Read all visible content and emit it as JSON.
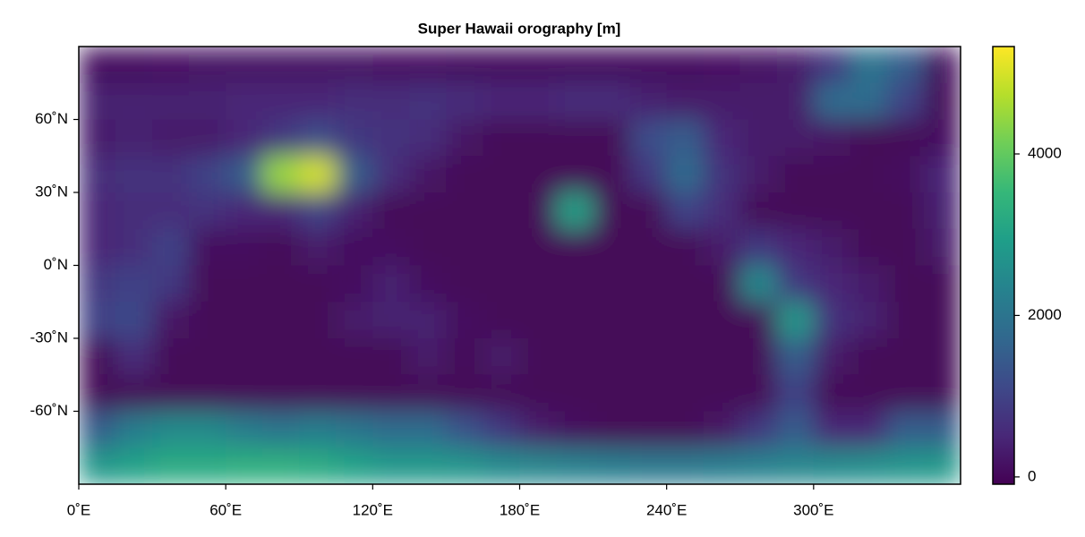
{
  "chart_data": {
    "type": "heatmap",
    "title": "Super Hawaii orography [m]",
    "xbins": [
      0,
      15,
      30,
      45,
      60,
      75,
      90,
      105,
      120,
      135,
      150,
      165,
      180,
      195,
      210,
      225,
      240,
      255,
      270,
      285,
      300,
      315,
      330,
      345,
      360
    ],
    "ybins": [
      90,
      75,
      60,
      45,
      30,
      15,
      0,
      -15,
      -30,
      -45,
      -60,
      -75,
      -90
    ],
    "z": [
      [
        100,
        100,
        150,
        200,
        200,
        200,
        200,
        200,
        150,
        150,
        100,
        100,
        100,
        100,
        100,
        100,
        100,
        150,
        200,
        300,
        800,
        2000,
        1500,
        100
      ],
      [
        400,
        400,
        400,
        400,
        500,
        500,
        500,
        600,
        600,
        700,
        600,
        500,
        500,
        600,
        600,
        400,
        300,
        300,
        300,
        300,
        1800,
        1800,
        1000,
        0
      ],
      [
        300,
        400,
        300,
        300,
        500,
        800,
        1200,
        800,
        700,
        600,
        200,
        0,
        0,
        0,
        0,
        1200,
        1500,
        500,
        300,
        300,
        200,
        0,
        0,
        100
      ],
      [
        600,
        700,
        700,
        1000,
        1500,
        4500,
        5000,
        1500,
        600,
        200,
        0,
        0,
        0,
        0,
        0,
        800,
        1800,
        700,
        300,
        0,
        0,
        0,
        100,
        500
      ],
      [
        500,
        600,
        600,
        700,
        500,
        500,
        1000,
        400,
        0,
        0,
        0,
        0,
        0,
        3000,
        0,
        0,
        1000,
        600,
        0,
        0,
        0,
        0,
        0,
        400
      ],
      [
        500,
        600,
        1000,
        100,
        100,
        0,
        300,
        100,
        100,
        0,
        0,
        0,
        0,
        0,
        0,
        0,
        0,
        300,
        800,
        500,
        300,
        0,
        0,
        300
      ],
      [
        800,
        1000,
        800,
        0,
        0,
        0,
        0,
        100,
        400,
        100,
        0,
        0,
        0,
        0,
        0,
        0,
        0,
        0,
        2500,
        800,
        500,
        300,
        0,
        0
      ],
      [
        1000,
        1100,
        200,
        0,
        0,
        0,
        0,
        300,
        400,
        400,
        100,
        0,
        0,
        0,
        0,
        0,
        0,
        0,
        0,
        2800,
        700,
        400,
        0,
        0
      ],
      [
        0,
        600,
        0,
        0,
        0,
        0,
        0,
        0,
        0,
        300,
        0,
        300,
        0,
        0,
        0,
        0,
        0,
        0,
        0,
        1500,
        300,
        0,
        0,
        0
      ],
      [
        0,
        0,
        0,
        0,
        0,
        0,
        0,
        0,
        0,
        0,
        0,
        0,
        0,
        0,
        0,
        0,
        0,
        0,
        0,
        1000,
        0,
        0,
        0,
        0
      ],
      [
        1500,
        2200,
        2500,
        2500,
        2200,
        2000,
        2200,
        2000,
        1800,
        1800,
        1300,
        800,
        300,
        100,
        0,
        0,
        0,
        200,
        800,
        1500,
        500,
        500,
        1500,
        1500
      ],
      [
        2800,
        3000,
        3200,
        3200,
        3300,
        3300,
        3200,
        3000,
        2800,
        2800,
        2700,
        2500,
        2400,
        2300,
        2200,
        2100,
        2100,
        2200,
        2300,
        2400,
        2500,
        2600,
        2700,
        2800
      ]
    ],
    "xlim": [
      0,
      360
    ],
    "ylim": [
      -90,
      90
    ],
    "xticks": [
      {
        "value": 0,
        "label": "0˚E"
      },
      {
        "value": 60,
        "label": "60˚E"
      },
      {
        "value": 120,
        "label": "120˚E"
      },
      {
        "value": 180,
        "label": "180˚E"
      },
      {
        "value": 240,
        "label": "240˚E"
      },
      {
        "value": 300,
        "label": "300˚E"
      }
    ],
    "yticks": [
      {
        "value": 60,
        "label": "60˚N"
      },
      {
        "value": 30,
        "label": "30˚N"
      },
      {
        "value": 0,
        "label": "0˚N"
      },
      {
        "value": -30,
        "label": "-30˚N"
      },
      {
        "value": -60,
        "label": "-60˚N"
      }
    ],
    "colorbar": {
      "lim": [
        -90,
        5330
      ],
      "ticks": [
        0,
        2000,
        4000
      ]
    },
    "colormap": [
      "#440154",
      "#482878",
      "#3e4989",
      "#31688e",
      "#26828e",
      "#1f9e89",
      "#35b779",
      "#6ece58",
      "#b5de2b",
      "#fde725"
    ]
  }
}
